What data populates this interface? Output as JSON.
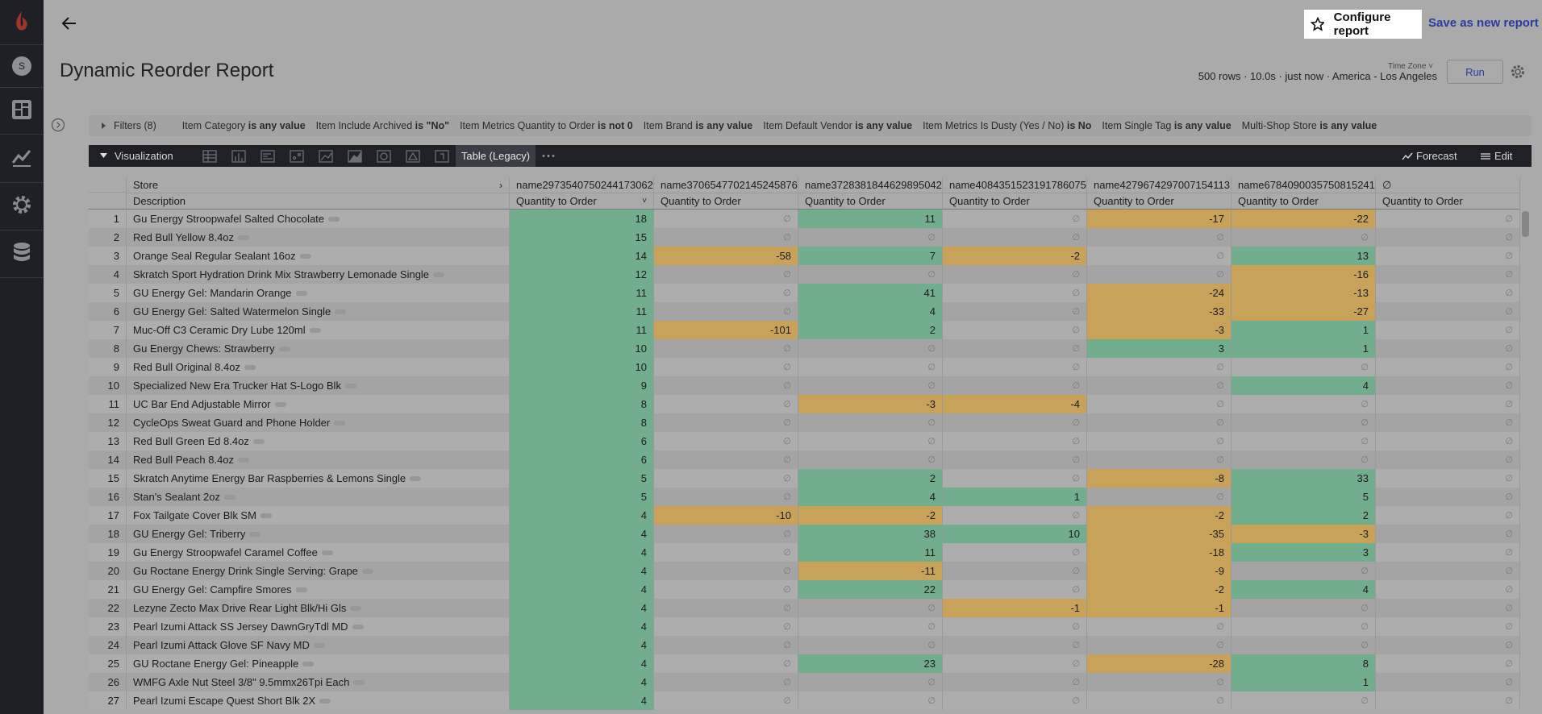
{
  "sidebar": {
    "avatar": "S"
  },
  "header": {
    "title": "Dynamic Reorder Report",
    "configure": "Configure report",
    "save": "Save as new report",
    "time_zone": "Time Zone",
    "status": "500 rows · 10.0s · just now · America - Los Angeles",
    "run": "Run"
  },
  "filters": {
    "label": "Filters (8)",
    "items": [
      {
        "field": "Item Category",
        "condition": "is any value"
      },
      {
        "field": "Item Include Archived",
        "condition": "is \"No\""
      },
      {
        "field": "Item Metrics Quantity to Order",
        "condition": "is not 0"
      },
      {
        "field": "Item Brand",
        "condition": "is any value"
      },
      {
        "field": "Item Default Vendor",
        "condition": "is any value"
      },
      {
        "field": "Item Metrics Is Dusty (Yes / No)",
        "condition": "is No"
      },
      {
        "field": "Item Single Tag",
        "condition": "is any value"
      },
      {
        "field": "Multi-Shop Store",
        "condition": "is any value"
      }
    ]
  },
  "toolbar": {
    "label": "Visualization",
    "active": "Table (Legacy)",
    "forecast": "Forecast",
    "edit": "Edit"
  },
  "table": {
    "store_label": "Store",
    "description_label": "Description",
    "null_symbol": "∅",
    "positive_color": "#72ad8e",
    "negative_color": "#c9a25a",
    "columns": [
      {
        "name": "name2973540750244173062",
        "measure": "Quantity to Order"
      },
      {
        "name": "name3706547702145245876",
        "measure": "Quantity to Order"
      },
      {
        "name": "name3728381844629895042",
        "measure": "Quantity to Order"
      },
      {
        "name": "name4084351523191786075",
        "measure": "Quantity to Order"
      },
      {
        "name": "name4279674297007154113",
        "measure": "Quantity to Order"
      },
      {
        "name": "name6784090035750815241",
        "measure": "Quantity to Order"
      },
      {
        "name": "∅",
        "measure": "Quantity to Order"
      }
    ],
    "rows": [
      {
        "number": 1,
        "description": "Gu Energy Stroopwafel Salted Chocolate",
        "values": [
          18,
          null,
          11,
          null,
          -17,
          -22,
          null
        ]
      },
      {
        "number": 2,
        "description": "Red Bull Yellow 8.4oz",
        "values": [
          15,
          null,
          null,
          null,
          null,
          null,
          null
        ]
      },
      {
        "number": 3,
        "description": "Orange Seal Regular Sealant 16oz",
        "values": [
          14,
          -58,
          7,
          -2,
          null,
          13,
          null
        ]
      },
      {
        "number": 4,
        "description": "Skratch Sport Hydration Drink Mix Strawberry Lemonade Single",
        "values": [
          12,
          null,
          null,
          null,
          null,
          -16,
          null
        ]
      },
      {
        "number": 5,
        "description": "GU Energy Gel: Mandarin Orange",
        "values": [
          11,
          null,
          41,
          null,
          -24,
          -13,
          null
        ]
      },
      {
        "number": 6,
        "description": "GU Energy Gel: Salted Watermelon Single",
        "values": [
          11,
          null,
          4,
          null,
          -33,
          -27,
          null
        ]
      },
      {
        "number": 7,
        "description": "Muc-Off C3 Ceramic Dry Lube 120ml",
        "values": [
          11,
          -101,
          2,
          null,
          -3,
          1,
          null
        ]
      },
      {
        "number": 8,
        "description": "Gu Energy Chews: Strawberry",
        "values": [
          10,
          null,
          null,
          null,
          3,
          1,
          null
        ]
      },
      {
        "number": 9,
        "description": "Red Bull Original 8.4oz",
        "values": [
          10,
          null,
          null,
          null,
          null,
          null,
          null
        ]
      },
      {
        "number": 10,
        "description": "Specialized New Era Trucker Hat S-Logo Blk",
        "values": [
          9,
          null,
          null,
          null,
          null,
          4,
          null
        ]
      },
      {
        "number": 11,
        "description": "UC Bar End Adjustable Mirror",
        "values": [
          8,
          null,
          -3,
          -4,
          null,
          null,
          null
        ]
      },
      {
        "number": 12,
        "description": "CycleOps Sweat Guard and Phone Holder",
        "values": [
          8,
          null,
          null,
          null,
          null,
          null,
          null
        ]
      },
      {
        "number": 13,
        "description": "Red Bull Green Ed 8.4oz",
        "values": [
          6,
          null,
          null,
          null,
          null,
          null,
          null
        ]
      },
      {
        "number": 14,
        "description": "Red Bull Peach 8.4oz",
        "values": [
          6,
          null,
          null,
          null,
          null,
          null,
          null
        ]
      },
      {
        "number": 15,
        "description": "Skratch Anytime Energy Bar Raspberries & Lemons Single",
        "values": [
          5,
          null,
          2,
          null,
          -8,
          33,
          null
        ]
      },
      {
        "number": 16,
        "description": "Stan's Sealant 2oz",
        "values": [
          5,
          null,
          4,
          1,
          null,
          5,
          null
        ]
      },
      {
        "number": 17,
        "description": "Fox Tailgate Cover Blk SM",
        "values": [
          4,
          -10,
          -2,
          null,
          -2,
          2,
          null
        ]
      },
      {
        "number": 18,
        "description": "GU Energy Gel: Triberry",
        "values": [
          4,
          null,
          38,
          10,
          -35,
          -3,
          null
        ]
      },
      {
        "number": 19,
        "description": "Gu Energy Stroopwafel Caramel Coffee",
        "values": [
          4,
          null,
          11,
          null,
          -18,
          3,
          null
        ]
      },
      {
        "number": 20,
        "description": "Gu Roctane Energy Drink Single Serving: Grape",
        "values": [
          4,
          null,
          -11,
          null,
          -9,
          null,
          null
        ]
      },
      {
        "number": 21,
        "description": "GU Energy Gel: Campfire Smores",
        "values": [
          4,
          null,
          22,
          null,
          -2,
          4,
          null
        ]
      },
      {
        "number": 22,
        "description": "Lezyne Zecto Max Drive Rear Light Blk/Hi Gls",
        "values": [
          4,
          null,
          null,
          -1,
          -1,
          null,
          null
        ]
      },
      {
        "number": 23,
        "description": "Pearl Izumi Attack SS Jersey DawnGryTdl MD",
        "values": [
          4,
          null,
          null,
          null,
          null,
          null,
          null
        ]
      },
      {
        "number": 24,
        "description": "Pearl Izumi Attack Glove SF Navy MD",
        "values": [
          4,
          null,
          null,
          null,
          null,
          null,
          null
        ]
      },
      {
        "number": 25,
        "description": "GU Roctane Energy Gel: Pineapple",
        "values": [
          4,
          null,
          23,
          null,
          -28,
          8,
          null
        ]
      },
      {
        "number": 26,
        "description": "WMFG Axle Nut Steel 3/8\" 9.5mmx26Tpi Each",
        "values": [
          4,
          null,
          null,
          null,
          null,
          1,
          null
        ]
      },
      {
        "number": 27,
        "description": "Pearl Izumi Escape Quest Short Blk 2X",
        "values": [
          4,
          null,
          null,
          null,
          null,
          null,
          null
        ]
      }
    ]
  }
}
